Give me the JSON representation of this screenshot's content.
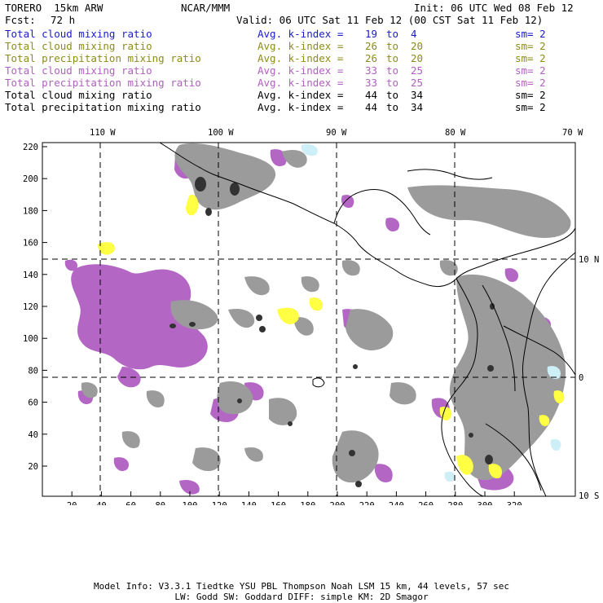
{
  "header": {
    "model": "TORERO  15km ARW",
    "org": "NCAR/MMM",
    "init": "Init: 06 UTC Wed 08 Feb 12",
    "fcst_label": "Fcst:",
    "fcst_value": "72 h",
    "valid": "Valid: 06 UTC Sat 11 Feb 12 (00 CST Sat 11 Feb 12)"
  },
  "legend": [
    {
      "field": "Total cloud mixing ratio",
      "k_label": "Avg. k-index =",
      "k_from": "19",
      "to": "to",
      "k_to": "4",
      "sm": "sm= 2",
      "color": "#1a1acc"
    },
    {
      "field": "Total cloud mixing ratio",
      "k_label": "Avg. k-index =",
      "k_from": "26",
      "to": "to",
      "k_to": "20",
      "sm": "sm= 2",
      "color": "#8c8c1a"
    },
    {
      "field": "Total precipitation mixing ratio",
      "k_label": "Avg. k-index =",
      "k_from": "26",
      "to": "to",
      "k_to": "20",
      "sm": "sm= 2",
      "color": "#8c8c1a"
    },
    {
      "field": "Total cloud mixing ratio",
      "k_label": "Avg. k-index =",
      "k_from": "33",
      "to": "to",
      "k_to": "25",
      "sm": "sm= 2",
      "color": "#b060c0"
    },
    {
      "field": "Total precipitation mixing ratio",
      "k_label": "Avg. k-index =",
      "k_from": "33",
      "to": "to",
      "k_to": "25",
      "sm": "sm= 2",
      "color": "#b060c0"
    },
    {
      "field": "Total cloud mixing ratio",
      "k_label": "Avg. k-index =",
      "k_from": "44",
      "to": "to",
      "k_to": "34",
      "sm": "sm= 2",
      "color": "#000000"
    },
    {
      "field": "Total precipitation mixing ratio",
      "k_label": "Avg. k-index =",
      "k_from": "44",
      "to": "to",
      "k_to": "34",
      "sm": "sm= 2",
      "color": "#000000"
    }
  ],
  "map": {
    "lon_labels": [
      "110 W",
      "100 W",
      "90 W",
      "80 W",
      "70 W"
    ],
    "lat_labels": [
      "10 N",
      "0",
      "10 S"
    ],
    "grid_x_labels": [
      "20",
      "40",
      "60",
      "80",
      "100",
      "120",
      "140",
      "160",
      "180",
      "200",
      "220",
      "240",
      "260",
      "280",
      "300",
      "320"
    ],
    "grid_y_labels": [
      "220",
      "200",
      "180",
      "160",
      "140",
      "120",
      "100",
      "80",
      "60",
      "40",
      "20"
    ],
    "colors": {
      "grey": "#9b9b9b",
      "dark": "#333333",
      "purple": "#b366c4",
      "yellow": "#ffff44",
      "cyan": "#cdeff7"
    }
  },
  "footer": {
    "line1": "Model Info: V3.3.1   Tiedtke YSU PBL  Thompson    Noah LSM  15 km,   44 levels,   57 sec",
    "line2": "LW: Godd SW: Goddard DIFF: simple KM: 2D Smagor"
  }
}
